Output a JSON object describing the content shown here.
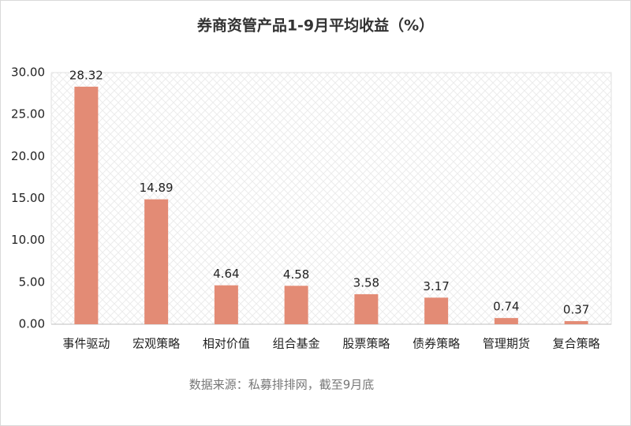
{
  "chart_data": {
    "type": "bar",
    "title": "券商资管产品1-9月平均收益（%）",
    "categories": [
      "事件驱动",
      "宏观策略",
      "相对价值",
      "组合基金",
      "股票策略",
      "债券策略",
      "管理期货",
      "复合策略"
    ],
    "values": [
      28.32,
      14.89,
      4.64,
      4.58,
      3.58,
      3.17,
      0.74,
      0.37
    ],
    "color": "#e38b75",
    "ylim": [
      0,
      30
    ],
    "yticks": [
      {
        "value": 0,
        "label": "0.00"
      },
      {
        "value": 5,
        "label": "5.00"
      },
      {
        "value": 10,
        "label": "10.00"
      },
      {
        "value": 15,
        "label": "15.00"
      },
      {
        "value": 20,
        "label": "20.00"
      },
      {
        "value": 25,
        "label": "25.00"
      },
      {
        "value": 30,
        "label": "30.00"
      }
    ],
    "source": "数据来源：私募排排网，截至9月底"
  }
}
